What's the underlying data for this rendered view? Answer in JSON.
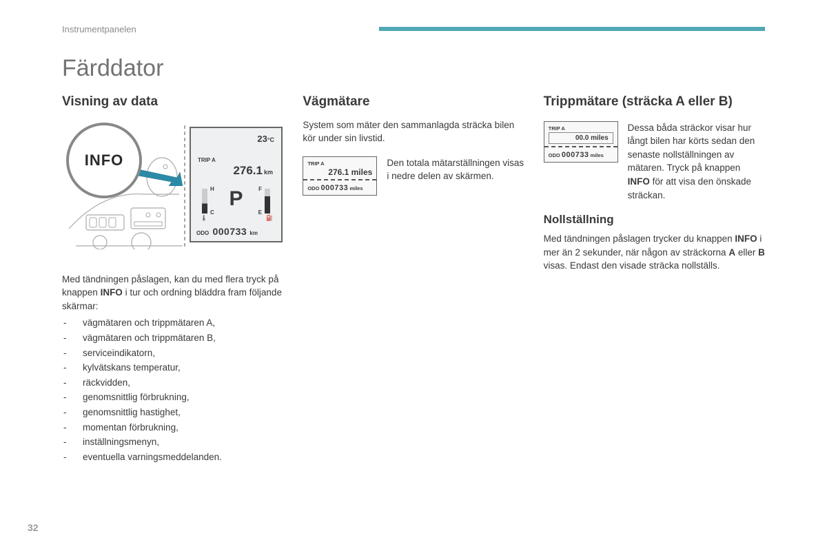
{
  "header": {
    "section_label": "Instrumentpanelen"
  },
  "accent_color": "#4fa8b3",
  "page_title": "Färddator",
  "page_number": "32",
  "col1": {
    "heading": "Visning av data",
    "info_badge": "INFO",
    "display": {
      "temp_value": "23",
      "temp_unit": "°C",
      "trip_label": "TRIP A",
      "trip_value": "276.1",
      "trip_unit": "km",
      "gear": "P",
      "gauge_left_top": "H",
      "gauge_left_bot": "C",
      "gauge_right_top": "F",
      "gauge_right_bot": "E",
      "odo_label": "ODO",
      "odo_value": "000733",
      "odo_unit": "km"
    },
    "para_before": "Med tändningen påslagen, kan du med flera tryck på knappen ",
    "para_bold": "INFO",
    "para_after": " i tur och ordning bläddra fram följande skärmar:",
    "items": [
      "vägmätaren och trippmätaren A,",
      "vägmätaren och trippmätaren B,",
      "serviceindikatorn,",
      "kylvätskans temperatur,",
      "räckvidden,",
      "genomsnittlig förbrukning,",
      "genomsnittlig hastighet,",
      "momentan förbrukning,",
      "inställningsmenyn,",
      "eventuella varningsmeddelanden."
    ]
  },
  "col2": {
    "heading": "Vägmätare",
    "intro": "System som mäter den sammanlagda sträcka bilen kör under sin livstid.",
    "mini": {
      "trip_label": "TRIP A",
      "trip_value": "276.1 miles",
      "odo_label": "ODO",
      "odo_value": "000733",
      "odo_unit": "miles"
    },
    "side_text": "Den totala mätarställningen visas i nedre delen av skärmen."
  },
  "col3": {
    "heading": "Trippmätare (sträcka A eller B)",
    "mini": {
      "trip_label": "TRIP A",
      "trip_value": "00.0 miles",
      "odo_label": "ODO",
      "odo_value": "000733",
      "odo_unit": "miles"
    },
    "side_before": "Dessa båda sträckor visar hur långt bilen har körts sedan den senaste nollställningen av mätaren. Tryck på knappen ",
    "side_bold": "INFO",
    "side_after": " för att visa den önskade sträckan.",
    "reset_heading": "Nollställning",
    "reset_p1": "Med tändningen påslagen trycker du knappen ",
    "reset_b1": "INFO",
    "reset_p2": " i mer än 2 sekunder, när någon av sträckorna ",
    "reset_b2": "A",
    "reset_p3": " eller ",
    "reset_b3": "B",
    "reset_p4": " visas. Endast den visade sträcka nollställs."
  }
}
